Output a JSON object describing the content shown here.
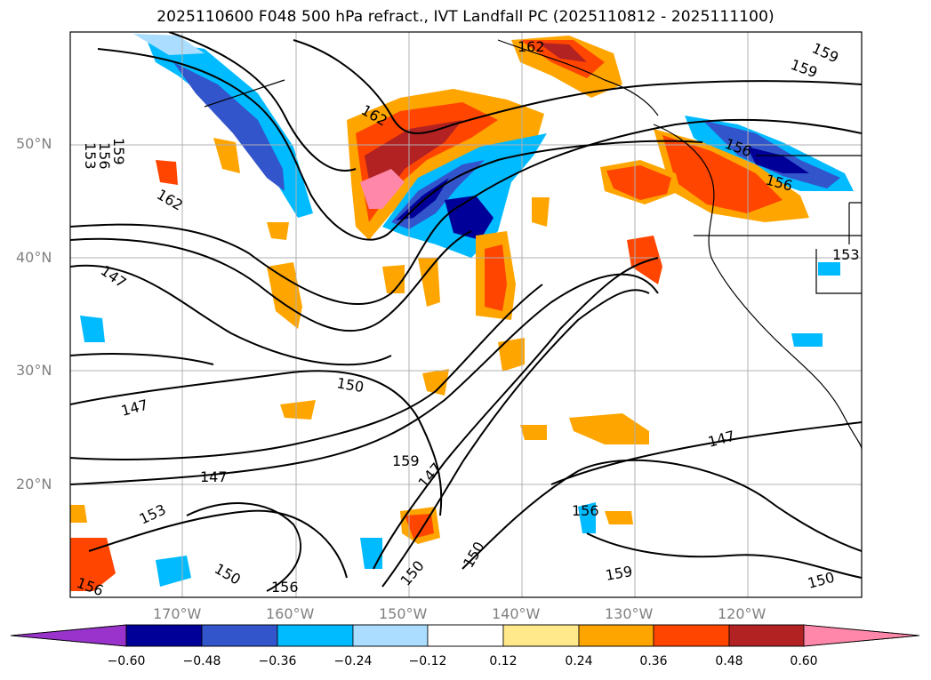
{
  "title": "2025110600 F048 500 hPa refract., IVT Landfall PC (2025110812 - 2025111100)",
  "map": {
    "lat_labels": [
      "50°N",
      "40°N",
      "30°N",
      "20°N"
    ],
    "lon_labels": [
      "170°W",
      "160°W",
      "150°W",
      "140°W",
      "130°W",
      "120°W"
    ],
    "contour_labels": [
      "162",
      "159",
      "159",
      "162",
      "159",
      "156",
      "153",
      "162",
      "147",
      "156",
      "156",
      "153",
      "147",
      "150",
      "147",
      "159",
      "147",
      "153",
      "147",
      "150",
      "156",
      "150",
      "156",
      "159",
      "156",
      "150"
    ],
    "colors": {
      "purple": "#9933cc",
      "navy": "#000099",
      "royal": "#3355cc",
      "sky": "#00bbff",
      "pale_blue": "#aaddff",
      "white": "#ffffff",
      "pale_yellow": "#ffe98a",
      "orange": "#ffa500",
      "red_orange": "#ff4500",
      "firebrick": "#b22222",
      "pink": "#ff88aa"
    }
  },
  "colorbar": {
    "ticks": [
      "−0.60",
      "−0.48",
      "−0.36",
      "−0.24",
      "−0.12",
      "0.12",
      "0.24",
      "0.36",
      "0.48",
      "0.60"
    ]
  }
}
